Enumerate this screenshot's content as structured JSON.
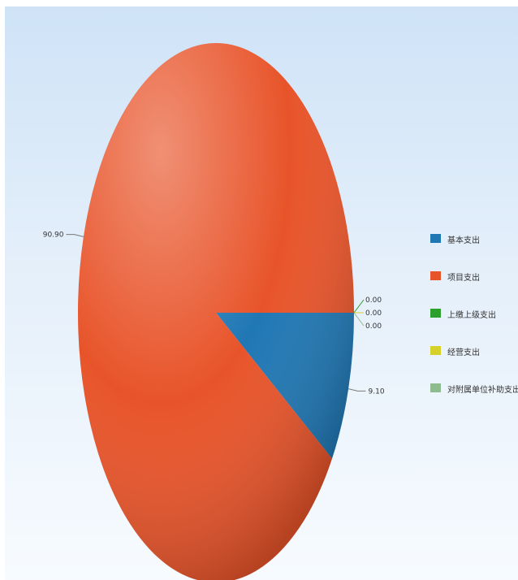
{
  "chart_data": {
    "type": "pie",
    "title": "",
    "legend_position": "right",
    "slices": [
      {
        "name": "基本支出",
        "value": 9.1,
        "label": "9.10",
        "color": "#1f77b4"
      },
      {
        "name": "项目支出",
        "value": 90.9,
        "label": "90.90",
        "color": "#e8542a"
      },
      {
        "name": "上缴上级支出",
        "value": 0.0,
        "label": "0.00",
        "color": "#2ca02c"
      },
      {
        "name": "经营支出",
        "value": 0.0,
        "label": "0.00",
        "color": "#d6d02b"
      },
      {
        "name": "对附属单位补助支出",
        "value": 0.0,
        "label": "0.00",
        "color": "#8fbc8f"
      }
    ]
  }
}
